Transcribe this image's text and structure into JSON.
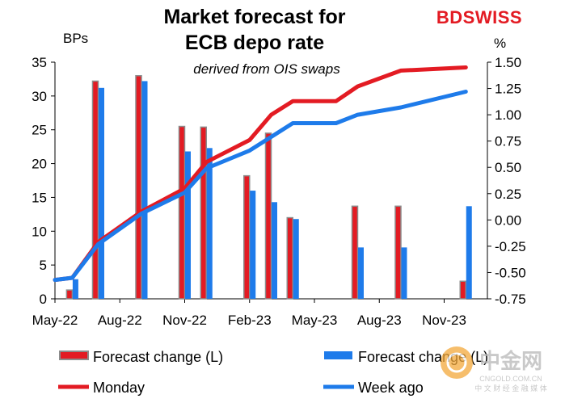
{
  "brand": {
    "name": "BDSWISS",
    "accent": "#e31b23"
  },
  "watermark": {
    "chinese": "中金网",
    "site": "CNGOLD.COM.CN",
    "tagline": "中 文 财 经 金 融 媒 体"
  },
  "chart_data": {
    "type": "bar+line",
    "title_line1": "Market forecast for",
    "title_line2": "ECB depo rate",
    "subtitle": "derived from OIS swaps",
    "left_axis_unit": "BPs",
    "right_axis_unit": "%",
    "left_ylim": [
      0,
      35
    ],
    "left_ticks": [
      "0",
      "5",
      "10",
      "15",
      "20",
      "25",
      "30",
      "35"
    ],
    "right_ylim": [
      -0.75,
      1.5
    ],
    "right_ticks": [
      "-0.75",
      "-0.50",
      "-0.25",
      "0.00",
      "0.25",
      "0.50",
      "0.75",
      "1.00",
      "1.25",
      "1.50"
    ],
    "x_range_months": [
      0,
      20
    ],
    "x_ticks": [
      {
        "label": "May-22",
        "pos": 0
      },
      {
        "label": "Aug-22",
        "pos": 3
      },
      {
        "label": "Nov-22",
        "pos": 6
      },
      {
        "label": "Feb-23",
        "pos": 9
      },
      {
        "label": "May-23",
        "pos": 12
      },
      {
        "label": "Aug-23",
        "pos": 15
      },
      {
        "label": "Nov-23",
        "pos": 18
      }
    ],
    "bars": [
      {
        "pos": 0.8,
        "red": 1.3,
        "blue": 2.9
      },
      {
        "pos": 2.0,
        "red": 32.2,
        "blue": 31.2
      },
      {
        "pos": 4.0,
        "red": 33.0,
        "blue": 32.2
      },
      {
        "pos": 6.0,
        "red": 25.5,
        "blue": 21.8
      },
      {
        "pos": 7.0,
        "red": 25.4,
        "blue": 22.3
      },
      {
        "pos": 9.0,
        "red": 18.2,
        "blue": 16.0
      },
      {
        "pos": 10.0,
        "red": 24.5,
        "blue": 14.3
      },
      {
        "pos": 11.0,
        "red": 12.0,
        "blue": 11.8
      },
      {
        "pos": 14.0,
        "red": 13.7,
        "blue": 7.6
      },
      {
        "pos": 16.0,
        "red": 13.7,
        "blue": 7.6
      },
      {
        "pos": 19.0,
        "red": 2.6,
        "blue": 13.7
      }
    ],
    "series": [
      {
        "name": "Monday",
        "axis": "right",
        "color": "#e31b23",
        "x": [
          0,
          0.8,
          2.0,
          4.0,
          6.0,
          7.0,
          9.0,
          10.0,
          11.0,
          13.0,
          14.0,
          16.0,
          19.0
        ],
        "y": [
          -0.57,
          -0.55,
          -0.21,
          0.08,
          0.3,
          0.55,
          0.76,
          1.0,
          1.13,
          1.13,
          1.27,
          1.42,
          1.45
        ]
      },
      {
        "name": "Week ago",
        "axis": "right",
        "color": "#1e7bea",
        "x": [
          0,
          0.8,
          2.0,
          4.0,
          6.0,
          7.0,
          9.0,
          10.0,
          11.0,
          13.0,
          14.0,
          16.0,
          19.0
        ],
        "y": [
          -0.57,
          -0.55,
          -0.23,
          0.06,
          0.26,
          0.49,
          0.66,
          0.79,
          0.92,
          0.92,
          1.0,
          1.07,
          1.22
        ]
      }
    ],
    "legend": [
      {
        "label": "Forecast change (L)",
        "kind": "bar",
        "color": "#e31b23"
      },
      {
        "label": "Forecast change (L)",
        "kind": "bar",
        "color": "#1e7bea"
      },
      {
        "label": "Monday",
        "kind": "line",
        "color": "#e31b23"
      },
      {
        "label": "Week ago",
        "kind": "line",
        "color": "#1e7bea"
      }
    ],
    "colors": {
      "red": "#e31b23",
      "blue": "#1e7bea",
      "grey": "#8c8c8c"
    }
  }
}
